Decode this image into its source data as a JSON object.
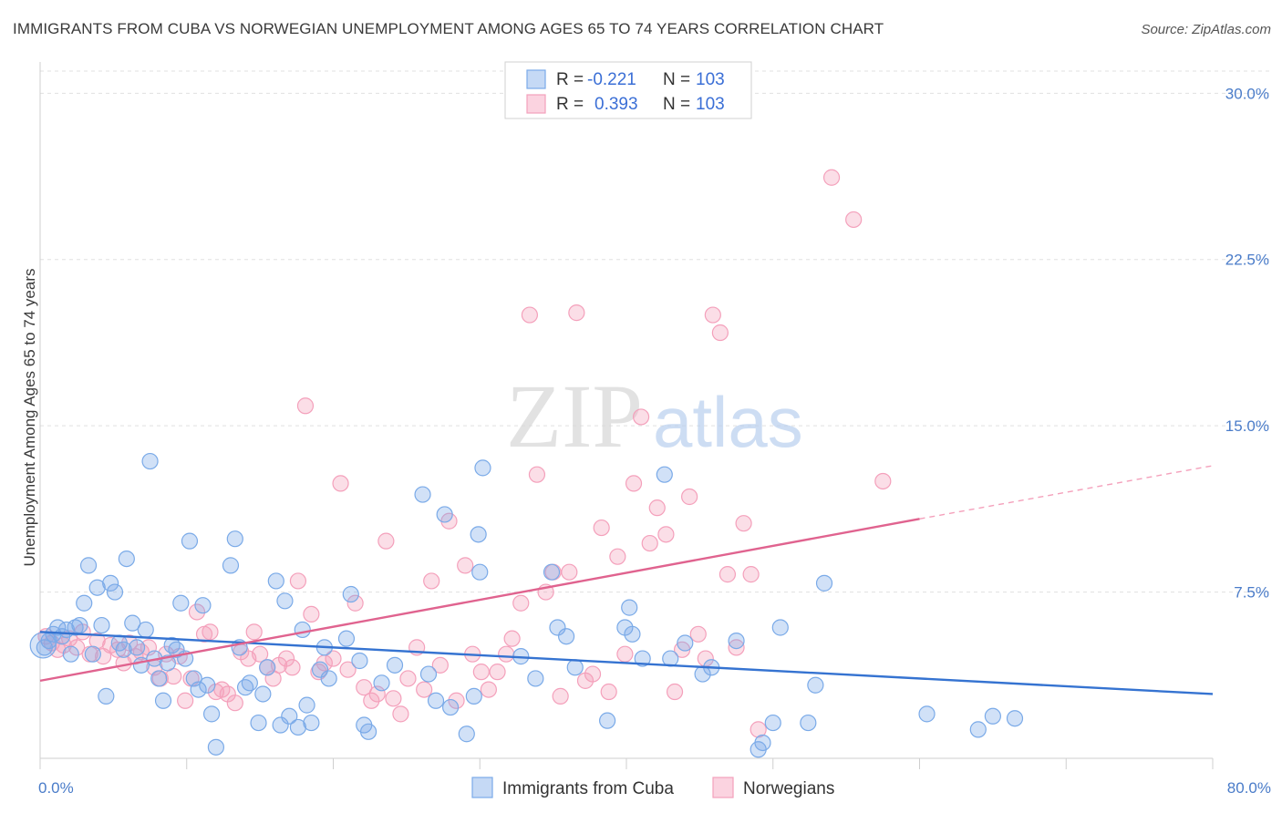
{
  "title": "IMMIGRANTS FROM CUBA VS NORWEGIAN UNEMPLOYMENT AMONG AGES 65 TO 74 YEARS CORRELATION CHART",
  "source": "Source: ZipAtlas.com",
  "watermark": {
    "zip": "ZIP",
    "atlas": "atlas"
  },
  "colors": {
    "cuba": "#7aaae8",
    "cuba_line": "#3573d1",
    "norway": "#f4a0bb",
    "norway_line": "#e0638f",
    "tick": "#4a7cc9",
    "grid": "#e0e0e0"
  },
  "legend": {
    "rows": [
      {
        "r_label": "R =",
        "r_value": "-0.221",
        "n_label": "N =",
        "n_value": "103"
      },
      {
        "r_label": "R =",
        "r_value": "0.393",
        "n_label": "N =",
        "n_value": "103"
      }
    ]
  },
  "chart_data": {
    "type": "scatter",
    "title": "IMMIGRANTS FROM CUBA VS NORWEGIAN UNEMPLOYMENT AMONG AGES 65 TO 74 YEARS CORRELATION CHART",
    "xlabel": "",
    "ylabel": "Unemployment Among Ages 65 to 74 years",
    "xlim": [
      0,
      80
    ],
    "ylim": [
      0,
      31
    ],
    "x_tick_labels": [
      "0.0%",
      "80.0%"
    ],
    "y_ticks": [
      7.5,
      15.0,
      22.5,
      30.0
    ],
    "y_tick_labels": [
      "7.5%",
      "15.0%",
      "22.5%",
      "30.0%"
    ],
    "grid": true,
    "legend_position": "top-center",
    "series": [
      {
        "name": "Immigrants from Cuba",
        "r": -0.221,
        "n": 103,
        "trend": {
          "x": [
            0,
            80
          ],
          "y": [
            5.7,
            2.9
          ]
        },
        "points": [
          [
            0.3,
            5.0
          ],
          [
            0.6,
            5.3
          ],
          [
            0.9,
            5.6
          ],
          [
            1.2,
            5.9
          ],
          [
            1.5,
            5.5
          ],
          [
            1.8,
            5.8
          ],
          [
            2.1,
            4.7
          ],
          [
            2.4,
            5.9
          ],
          [
            2.7,
            6.0
          ],
          [
            3.0,
            7.0
          ],
          [
            3.3,
            8.7
          ],
          [
            3.6,
            4.7
          ],
          [
            3.9,
            7.7
          ],
          [
            4.2,
            6.0
          ],
          [
            4.5,
            2.8
          ],
          [
            4.8,
            7.9
          ],
          [
            5.1,
            7.5
          ],
          [
            5.4,
            5.2
          ],
          [
            5.7,
            4.9
          ],
          [
            5.9,
            9.0
          ],
          [
            6.3,
            6.1
          ],
          [
            6.6,
            5.0
          ],
          [
            6.9,
            4.2
          ],
          [
            7.2,
            5.8
          ],
          [
            7.5,
            13.4
          ],
          [
            7.8,
            4.5
          ],
          [
            8.1,
            3.6
          ],
          [
            8.4,
            2.6
          ],
          [
            8.7,
            4.3
          ],
          [
            9.0,
            5.1
          ],
          [
            9.3,
            4.9
          ],
          [
            9.6,
            7.0
          ],
          [
            9.9,
            4.5
          ],
          [
            10.2,
            9.8
          ],
          [
            10.5,
            3.6
          ],
          [
            10.8,
            3.1
          ],
          [
            11.1,
            6.9
          ],
          [
            11.4,
            3.3
          ],
          [
            11.7,
            2.0
          ],
          [
            12.0,
            0.5
          ],
          [
            13.0,
            8.7
          ],
          [
            13.3,
            9.9
          ],
          [
            13.6,
            5.0
          ],
          [
            14.0,
            3.2
          ],
          [
            14.3,
            3.4
          ],
          [
            14.9,
            1.6
          ],
          [
            15.2,
            2.9
          ],
          [
            15.5,
            4.1
          ],
          [
            16.1,
            8.0
          ],
          [
            16.4,
            1.5
          ],
          [
            16.7,
            7.1
          ],
          [
            17.0,
            1.9
          ],
          [
            17.6,
            1.4
          ],
          [
            17.9,
            5.8
          ],
          [
            18.2,
            2.4
          ],
          [
            18.5,
            1.6
          ],
          [
            19.1,
            4.0
          ],
          [
            19.4,
            5.0
          ],
          [
            19.7,
            3.6
          ],
          [
            20.9,
            5.4
          ],
          [
            21.2,
            7.4
          ],
          [
            21.8,
            4.4
          ],
          [
            22.1,
            1.5
          ],
          [
            22.4,
            1.2
          ],
          [
            23.3,
            3.4
          ],
          [
            24.2,
            4.2
          ],
          [
            26.1,
            11.9
          ],
          [
            26.5,
            3.8
          ],
          [
            27.0,
            2.6
          ],
          [
            27.6,
            11.0
          ],
          [
            28.0,
            2.3
          ],
          [
            29.1,
            1.1
          ],
          [
            29.6,
            2.8
          ],
          [
            29.9,
            10.1
          ],
          [
            30.0,
            8.4
          ],
          [
            30.2,
            13.1
          ],
          [
            32.8,
            4.6
          ],
          [
            33.8,
            3.6
          ],
          [
            34.9,
            8.4
          ],
          [
            35.3,
            5.9
          ],
          [
            35.9,
            5.5
          ],
          [
            36.5,
            4.1
          ],
          [
            38.7,
            1.7
          ],
          [
            39.9,
            5.9
          ],
          [
            40.2,
            6.8
          ],
          [
            40.4,
            5.6
          ],
          [
            41.1,
            4.5
          ],
          [
            42.6,
            12.8
          ],
          [
            43.0,
            4.5
          ],
          [
            44.0,
            5.2
          ],
          [
            45.2,
            3.8
          ],
          [
            45.8,
            4.1
          ],
          [
            47.5,
            5.3
          ],
          [
            49.0,
            0.4
          ],
          [
            49.3,
            0.7
          ],
          [
            50.0,
            1.6
          ],
          [
            50.5,
            5.9
          ],
          [
            52.4,
            1.6
          ],
          [
            52.9,
            3.3
          ],
          [
            53.5,
            7.9
          ],
          [
            60.5,
            2.0
          ],
          [
            64.0,
            1.3
          ],
          [
            65.0,
            1.9
          ],
          [
            66.5,
            1.8
          ]
        ]
      },
      {
        "name": "Norwegians",
        "r": 0.393,
        "n": 103,
        "trend": {
          "x": [
            0,
            60
          ],
          "y": [
            3.5,
            10.8
          ]
        },
        "trend_ext": {
          "x": [
            60,
            80
          ],
          "y": [
            10.8,
            13.2
          ]
        },
        "points": [
          [
            0.4,
            5.5
          ],
          [
            0.8,
            5.2
          ],
          [
            1.2,
            4.9
          ],
          [
            1.6,
            5.1
          ],
          [
            2.0,
            5.4
          ],
          [
            2.5,
            5.0
          ],
          [
            2.9,
            5.7
          ],
          [
            3.4,
            4.7
          ],
          [
            3.9,
            5.3
          ],
          [
            4.3,
            4.6
          ],
          [
            4.8,
            5.1
          ],
          [
            5.3,
            4.9
          ],
          [
            5.7,
            4.3
          ],
          [
            6.1,
            5.2
          ],
          [
            6.5,
            4.6
          ],
          [
            6.9,
            4.8
          ],
          [
            7.4,
            5.0
          ],
          [
            7.8,
            4.1
          ],
          [
            8.2,
            3.6
          ],
          [
            8.6,
            4.7
          ],
          [
            9.1,
            3.7
          ],
          [
            9.5,
            4.6
          ],
          [
            9.9,
            2.6
          ],
          [
            10.3,
            3.6
          ],
          [
            10.7,
            6.6
          ],
          [
            11.2,
            5.6
          ],
          [
            11.6,
            5.7
          ],
          [
            12.0,
            3.0
          ],
          [
            12.4,
            3.1
          ],
          [
            12.8,
            2.9
          ],
          [
            13.3,
            2.5
          ],
          [
            13.7,
            4.8
          ],
          [
            14.2,
            4.5
          ],
          [
            14.6,
            5.7
          ],
          [
            15.0,
            4.7
          ],
          [
            15.5,
            4.1
          ],
          [
            15.9,
            3.6
          ],
          [
            16.3,
            4.2
          ],
          [
            16.8,
            4.5
          ],
          [
            17.2,
            4.1
          ],
          [
            17.6,
            8.0
          ],
          [
            18.1,
            15.9
          ],
          [
            18.5,
            6.5
          ],
          [
            19.0,
            3.9
          ],
          [
            19.4,
            4.3
          ],
          [
            20.0,
            4.5
          ],
          [
            20.5,
            12.4
          ],
          [
            21.0,
            4.0
          ],
          [
            21.5,
            7.0
          ],
          [
            22.1,
            3.2
          ],
          [
            22.6,
            2.6
          ],
          [
            23.0,
            2.9
          ],
          [
            23.6,
            9.8
          ],
          [
            24.1,
            2.7
          ],
          [
            24.6,
            2.0
          ],
          [
            25.1,
            3.6
          ],
          [
            25.7,
            5.0
          ],
          [
            26.2,
            3.1
          ],
          [
            26.7,
            8.0
          ],
          [
            27.3,
            4.2
          ],
          [
            27.9,
            10.7
          ],
          [
            28.4,
            2.6
          ],
          [
            29.0,
            8.7
          ],
          [
            29.5,
            4.7
          ],
          [
            30.1,
            3.9
          ],
          [
            30.6,
            3.1
          ],
          [
            31.2,
            3.9
          ],
          [
            31.8,
            4.7
          ],
          [
            32.2,
            5.4
          ],
          [
            32.8,
            7.0
          ],
          [
            33.4,
            20.0
          ],
          [
            33.9,
            12.8
          ],
          [
            34.5,
            7.5
          ],
          [
            35.0,
            8.4
          ],
          [
            35.5,
            2.8
          ],
          [
            36.1,
            8.4
          ],
          [
            36.6,
            20.1
          ],
          [
            37.2,
            3.5
          ],
          [
            37.7,
            3.8
          ],
          [
            38.3,
            10.4
          ],
          [
            38.8,
            3.0
          ],
          [
            39.4,
            9.1
          ],
          [
            39.9,
            4.7
          ],
          [
            40.5,
            12.4
          ],
          [
            41.0,
            15.4
          ],
          [
            41.6,
            9.7
          ],
          [
            42.1,
            11.3
          ],
          [
            42.7,
            10.1
          ],
          [
            43.3,
            3.0
          ],
          [
            43.8,
            4.9
          ],
          [
            44.3,
            11.8
          ],
          [
            44.9,
            5.6
          ],
          [
            45.4,
            4.5
          ],
          [
            45.9,
            20.0
          ],
          [
            46.4,
            19.2
          ],
          [
            46.9,
            8.3
          ],
          [
            47.5,
            5.0
          ],
          [
            48.0,
            10.6
          ],
          [
            48.5,
            8.3
          ],
          [
            49.0,
            1.3
          ],
          [
            54.0,
            26.2
          ],
          [
            55.5,
            24.3
          ],
          [
            57.5,
            12.5
          ]
        ]
      }
    ]
  },
  "bottom_legend": [
    {
      "label": "Immigrants from Cuba"
    },
    {
      "label": "Norwegians"
    }
  ]
}
